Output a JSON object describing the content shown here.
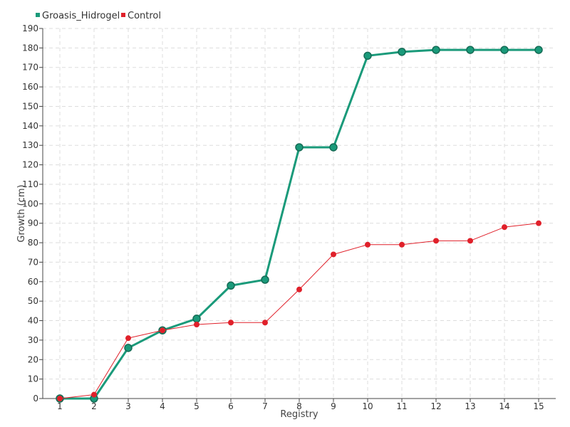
{
  "chart_data": {
    "type": "line",
    "title": "",
    "xlabel": "Registry",
    "ylabel": "Growth (cm)",
    "x": [
      1,
      2,
      3,
      4,
      5,
      6,
      7,
      8,
      9,
      10,
      11,
      12,
      13,
      14,
      15
    ],
    "xlim": [
      0.5,
      15.5
    ],
    "ylim": [
      0,
      190
    ],
    "ytick_step": 10,
    "grid": true,
    "legend_position": "top-left",
    "series": [
      {
        "name": "Groasis_Hidrogel",
        "color": "#1a9a7a",
        "values": [
          0,
          0,
          26,
          35,
          41,
          58,
          61,
          129,
          129,
          176,
          178,
          179,
          179,
          179,
          179
        ]
      },
      {
        "name": "Control",
        "color": "#e0202a",
        "values": [
          0,
          2,
          31,
          35,
          38,
          39,
          39,
          56,
          74,
          79,
          79,
          81,
          81,
          88,
          90
        ]
      }
    ]
  }
}
